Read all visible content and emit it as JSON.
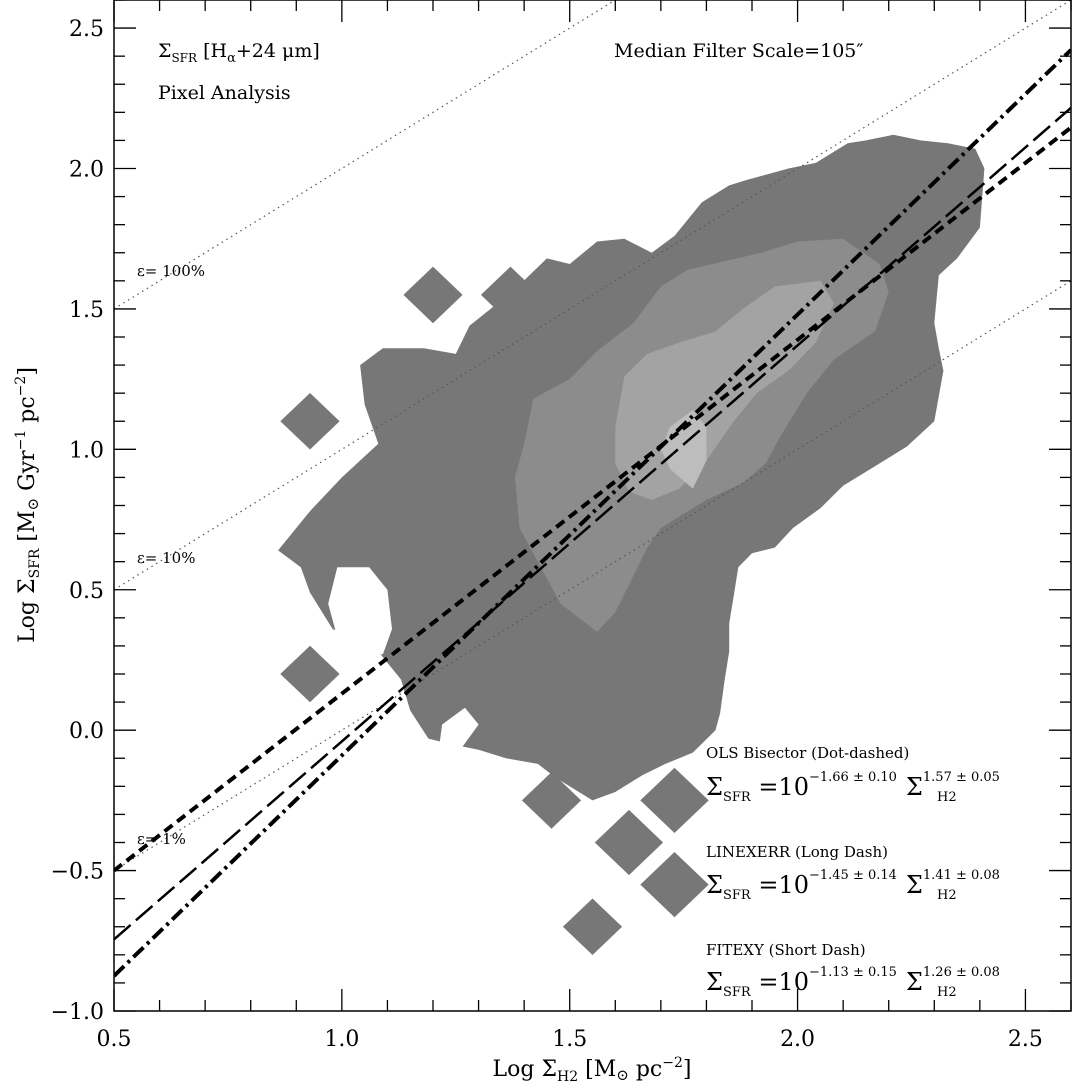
{
  "chart_data": {
    "type": "scatter",
    "x_axis": {
      "label_prefix": "Log Σ",
      "label_sub": "H2",
      "label_unit_pre": " [M",
      "label_odot": "⊙",
      "label_unit_post": " pc",
      "label_sup": "−2",
      "label_close": "]",
      "range": [
        0.5,
        2.6
      ],
      "ticks": [
        {
          "value": 0.5,
          "label": "0.5"
        },
        {
          "value": 1.0,
          "label": "1.0"
        },
        {
          "value": 1.5,
          "label": "1.5"
        },
        {
          "value": 2.0,
          "label": "2.0"
        },
        {
          "value": 2.5,
          "label": "2.5"
        }
      ]
    },
    "y_axis": {
      "label_prefix": "Log Σ",
      "label_sub": "SFR",
      "label_unit_pre": " [M",
      "label_odot": "⊙",
      "label_unit_mid": " Gyr",
      "label_sup1": "−1",
      "label_unit_post": " pc",
      "label_sup2": "−2",
      "label_close": "]",
      "range": [
        -1.0,
        2.6
      ],
      "ticks": [
        {
          "value": -1.0,
          "label": "−1.0"
        },
        {
          "value": -0.5,
          "label": "−0.5"
        },
        {
          "value": 0.0,
          "label": "0.0"
        },
        {
          "value": 0.5,
          "label": "0.5"
        },
        {
          "value": 1.0,
          "label": "1.0"
        },
        {
          "value": 1.5,
          "label": "1.5"
        },
        {
          "value": 2.0,
          "label": "2.0"
        },
        {
          "value": 2.5,
          "label": "2.5"
        }
      ]
    },
    "annotations": {
      "sfr_tracer_sigma": "Σ",
      "sfr_tracer_sub": "SFR",
      "sfr_tracer_rest": " [H",
      "sfr_tracer_alpha": "α",
      "sfr_tracer_tail": "+24 μm]",
      "analysis": "Pixel Analysis",
      "filter_scale": "Median Filter Scale=105″"
    },
    "efficiency_lines": [
      {
        "label": "ε= 100%",
        "intercept": 1.0
      },
      {
        "label": "ε= 10%",
        "intercept": 0.0
      },
      {
        "label": "ε= 1%",
        "intercept": -1.0
      }
    ],
    "fits": [
      {
        "name": "OLS Bisector  (Dot-dashed)",
        "style": "dot-dashed",
        "log_a": -1.66,
        "log_a_err": "0.10",
        "n": 1.57,
        "n_err": "0.05",
        "coef_text": "−1.66 ± 0.10",
        "exp_text": "1.57 ± 0.05"
      },
      {
        "name": "LINEXERR  (Long Dash)",
        "style": "long-dash",
        "log_a": -1.45,
        "log_a_err": "0.14",
        "n": 1.41,
        "n_err": "0.08",
        "coef_text": "−1.45 ± 0.14",
        "exp_text": "1.41 ± 0.08"
      },
      {
        "name": "FITEXY  (Short Dash)",
        "style": "short-dash",
        "log_a": -1.13,
        "log_a_err": "0.15",
        "n": 1.26,
        "n_err": "0.08",
        "coef_text": "−1.13 ± 0.15",
        "exp_text": "1.26 ± 0.08"
      }
    ],
    "equation_parts": {
      "sigma": "Σ",
      "sfr": "SFR",
      "equals_ten": " =10",
      "h2": "H2"
    },
    "density_contours": [
      {
        "level": "low",
        "color": "#777777",
        "outline": [
          [
            0.86,
            0.64
          ],
          [
            0.93,
            0.78
          ],
          [
            1.0,
            0.9
          ],
          [
            1.08,
            1.02
          ],
          [
            1.05,
            1.16
          ],
          [
            1.04,
            1.3
          ],
          [
            1.09,
            1.36
          ],
          [
            1.18,
            1.36
          ],
          [
            1.25,
            1.34
          ],
          [
            1.28,
            1.44
          ],
          [
            1.38,
            1.57
          ],
          [
            1.45,
            1.68
          ],
          [
            1.5,
            1.66
          ],
          [
            1.56,
            1.74
          ],
          [
            1.62,
            1.75
          ],
          [
            1.68,
            1.7
          ],
          [
            1.73,
            1.76
          ],
          [
            1.79,
            1.88
          ],
          [
            1.85,
            1.94
          ],
          [
            1.89,
            1.96
          ],
          [
            1.98,
            2.0
          ],
          [
            2.04,
            2.02
          ],
          [
            2.11,
            2.09
          ],
          [
            2.15,
            2.1
          ],
          [
            2.21,
            2.12
          ],
          [
            2.27,
            2.1
          ],
          [
            2.33,
            2.09
          ],
          [
            2.39,
            2.07
          ],
          [
            2.41,
            2.0
          ],
          [
            2.4,
            1.79
          ],
          [
            2.35,
            1.68
          ],
          [
            2.31,
            1.62
          ],
          [
            2.3,
            1.45
          ],
          [
            2.31,
            1.36
          ],
          [
            2.32,
            1.28
          ],
          [
            2.3,
            1.1
          ],
          [
            2.24,
            1.01
          ],
          [
            2.16,
            0.93
          ],
          [
            2.1,
            0.87
          ],
          [
            2.05,
            0.79
          ],
          [
            1.99,
            0.72
          ],
          [
            1.95,
            0.65
          ],
          [
            1.9,
            0.63
          ],
          [
            1.87,
            0.58
          ],
          [
            1.86,
            0.48
          ],
          [
            1.85,
            0.38
          ],
          [
            1.85,
            0.28
          ],
          [
            1.84,
            0.18
          ],
          [
            1.83,
            0.06
          ],
          [
            1.82,
            0.0
          ],
          [
            1.77,
            -0.08
          ],
          [
            1.71,
            -0.12
          ],
          [
            1.66,
            -0.16
          ],
          [
            1.6,
            -0.22
          ],
          [
            1.55,
            -0.25
          ],
          [
            1.47,
            -0.17
          ],
          [
            1.43,
            -0.12
          ],
          [
            1.36,
            -0.1
          ],
          [
            1.3,
            -0.07
          ],
          [
            1.24,
            -0.05
          ],
          [
            1.19,
            -0.03
          ],
          [
            1.15,
            0.07
          ],
          [
            1.13,
            0.18
          ],
          [
            1.08,
            0.28
          ],
          [
            1.03,
            0.33
          ],
          [
            0.98,
            0.36
          ],
          [
            0.93,
            0.49
          ],
          [
            0.91,
            0.58
          ]
        ]
      },
      {
        "level": "mid",
        "color": "#8c8c8c",
        "outline": [
          [
            1.42,
            1.18
          ],
          [
            1.5,
            1.25
          ],
          [
            1.56,
            1.35
          ],
          [
            1.64,
            1.45
          ],
          [
            1.7,
            1.58
          ],
          [
            1.76,
            1.64
          ],
          [
            1.84,
            1.67
          ],
          [
            1.92,
            1.7
          ],
          [
            2.0,
            1.74
          ],
          [
            2.1,
            1.75
          ],
          [
            2.18,
            1.66
          ],
          [
            2.2,
            1.56
          ],
          [
            2.17,
            1.42
          ],
          [
            2.08,
            1.32
          ],
          [
            2.02,
            1.2
          ],
          [
            1.96,
            1.04
          ],
          [
            1.93,
            0.95
          ],
          [
            1.88,
            0.88
          ],
          [
            1.8,
            0.82
          ],
          [
            1.75,
            0.77
          ],
          [
            1.7,
            0.72
          ],
          [
            1.67,
            0.65
          ],
          [
            1.64,
            0.55
          ],
          [
            1.6,
            0.42
          ],
          [
            1.56,
            0.35
          ],
          [
            1.48,
            0.45
          ],
          [
            1.43,
            0.6
          ],
          [
            1.39,
            0.72
          ],
          [
            1.38,
            0.9
          ],
          [
            1.4,
            1.02
          ]
        ]
      },
      {
        "level": "high",
        "color": "#a3a3a3",
        "outline": [
          [
            1.62,
            1.26
          ],
          [
            1.67,
            1.34
          ],
          [
            1.74,
            1.38
          ],
          [
            1.82,
            1.42
          ],
          [
            1.88,
            1.5
          ],
          [
            1.95,
            1.58
          ],
          [
            2.05,
            1.6
          ],
          [
            2.08,
            1.52
          ],
          [
            2.04,
            1.38
          ],
          [
            1.98,
            1.28
          ],
          [
            1.91,
            1.2
          ],
          [
            1.86,
            1.1
          ],
          [
            1.8,
            0.96
          ],
          [
            1.74,
            0.86
          ],
          [
            1.68,
            0.82
          ],
          [
            1.63,
            0.85
          ],
          [
            1.6,
            0.95
          ],
          [
            1.6,
            1.08
          ]
        ]
      },
      {
        "level": "peak",
        "color": "#bdbdbd",
        "outline": [
          [
            1.72,
            1.08
          ],
          [
            1.77,
            1.14
          ],
          [
            1.8,
            1.08
          ],
          [
            1.8,
            0.96
          ],
          [
            1.77,
            0.86
          ],
          [
            1.72,
            0.93
          ],
          [
            1.7,
            1.0
          ]
        ]
      }
    ],
    "outlier_diamonds": [
      {
        "x": 1.2,
        "y": 1.55,
        "size": 0.065
      },
      {
        "x": 1.37,
        "y": 1.55,
        "size": 0.065
      },
      {
        "x": 0.93,
        "y": 1.1,
        "size": 0.065
      },
      {
        "x": 0.93,
        "y": 0.2,
        "size": 0.065
      },
      {
        "x": 1.46,
        "y": -0.25,
        "size": 0.065
      },
      {
        "x": 1.63,
        "y": -0.4,
        "size": 0.075
      },
      {
        "x": 1.73,
        "y": -0.25,
        "size": 0.075
      },
      {
        "x": 1.73,
        "y": -0.55,
        "size": 0.075
      },
      {
        "x": 1.55,
        "y": -0.7,
        "size": 0.065
      }
    ],
    "holes": [
      {
        "x": 1.03,
        "y": 0.47,
        "shape": "hole1"
      },
      {
        "x": 1.24,
        "y": -0.01,
        "shape": "hole2"
      }
    ]
  }
}
